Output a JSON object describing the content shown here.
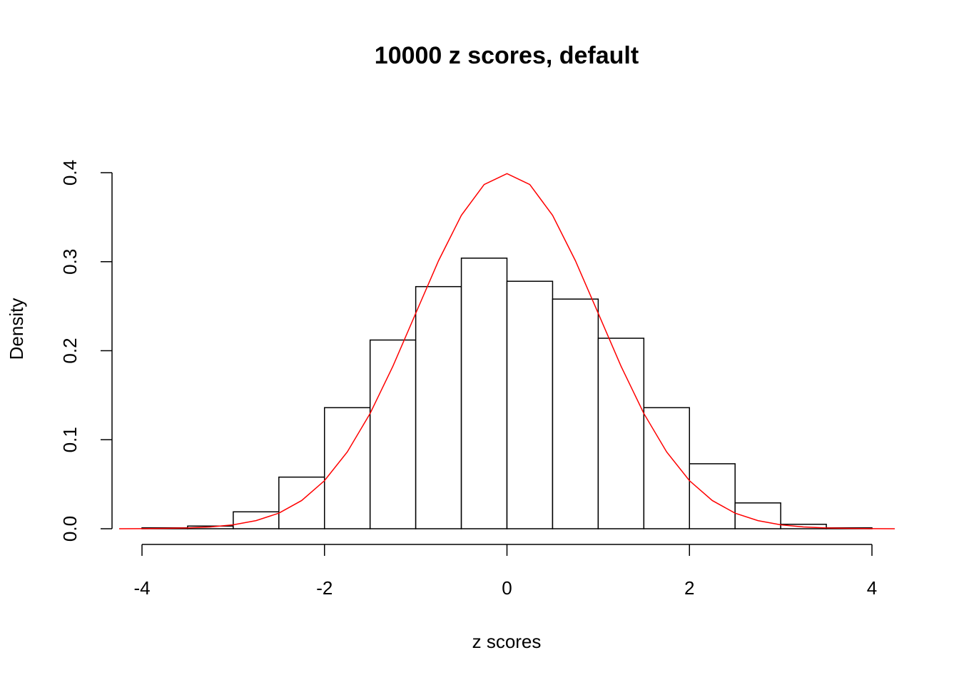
{
  "chart_data": {
    "type": "histogram",
    "title": "10000 z scores, default",
    "xlabel": "z scores",
    "ylabel": "Density",
    "bins": [
      -4,
      -3.5,
      -3,
      -2.5,
      -2,
      -1.5,
      -1,
      -0.5,
      0,
      0.5,
      1,
      1.5,
      2,
      2.5,
      3,
      3.5,
      4
    ],
    "values": [
      0.001,
      0.003,
      0.019,
      0.058,
      0.136,
      0.212,
      0.272,
      0.304,
      0.278,
      0.258,
      0.214,
      0.136,
      0.073,
      0.029,
      0.005,
      0.001
    ],
    "color": "#ffffff",
    "edgecolor": "#000000",
    "curve": {
      "color": "#ff0000",
      "x": [
        -4.25,
        -4,
        -3.75,
        -3.5,
        -3.25,
        -3,
        -2.75,
        -2.5,
        -2.25,
        -2,
        -1.75,
        -1.5,
        -1.25,
        -1,
        -0.75,
        -0.5,
        -0.25,
        0,
        0.25,
        0.5,
        0.75,
        1,
        1.25,
        1.5,
        1.75,
        2,
        2.25,
        2.5,
        2.75,
        3,
        3.25,
        3.5,
        3.75,
        4,
        4.25
      ],
      "values": [
        5e-05,
        0.0001,
        0.0004,
        0.0009,
        0.002,
        0.0044,
        0.0091,
        0.0175,
        0.0317,
        0.054,
        0.0863,
        0.1295,
        0.1826,
        0.242,
        0.3011,
        0.3521,
        0.3867,
        0.3989,
        0.3867,
        0.3521,
        0.3011,
        0.242,
        0.1826,
        0.1295,
        0.0863,
        0.054,
        0.0317,
        0.0175,
        0.0091,
        0.0044,
        0.002,
        0.0009,
        0.0004,
        0.0001,
        5e-05
      ]
    },
    "xlim": [
      -4,
      4
    ],
    "xticks": [
      -4,
      -2,
      0,
      2,
      4
    ],
    "ylim": [
      0,
      0.4
    ],
    "yticks": [
      0.0,
      0.1,
      0.2,
      0.3,
      0.4
    ]
  }
}
